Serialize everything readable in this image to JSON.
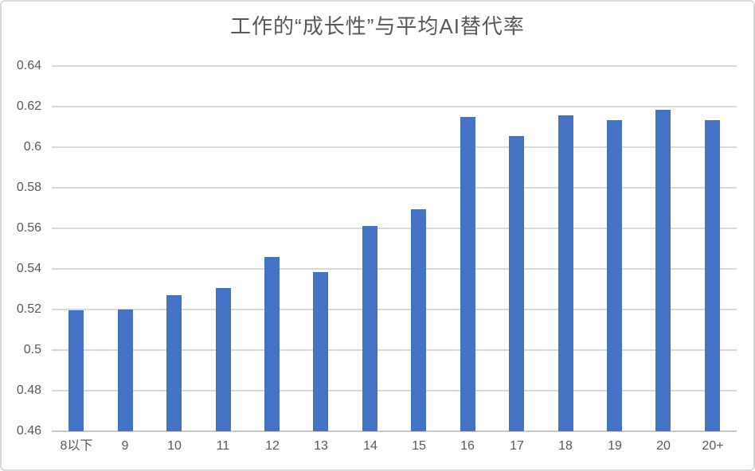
{
  "chart_data": {
    "type": "bar",
    "title": "工作的“成长性”与平均AI替代率",
    "xlabel": "",
    "ylabel": "",
    "categories": [
      "8以下",
      "9",
      "10",
      "11",
      "12",
      "13",
      "14",
      "15",
      "16",
      "17",
      "18",
      "19",
      "20",
      "20+"
    ],
    "values": [
      0.5195,
      0.52,
      0.527,
      0.5305,
      0.546,
      0.5385,
      0.561,
      0.5695,
      0.615,
      0.6055,
      0.6155,
      0.6135,
      0.6185,
      0.6135
    ],
    "ylim": [
      0.46,
      0.64
    ],
    "ytick_step": 0.02,
    "ytick_labels_top_to_bottom": [
      "0.64",
      "0.62",
      "0.6",
      "0.58",
      "0.56",
      "0.54",
      "0.52",
      "0.5",
      "0.48",
      "0.46"
    ],
    "grid": true,
    "legend": "none",
    "colors": {
      "bar": "#4472c4",
      "gridline": "#d9d9d9",
      "axis_line": "#c9c9c9",
      "axis_text": "#595959",
      "title_text": "#595959",
      "background": "#ffffff",
      "frame_border": "#d9d9d9"
    }
  }
}
